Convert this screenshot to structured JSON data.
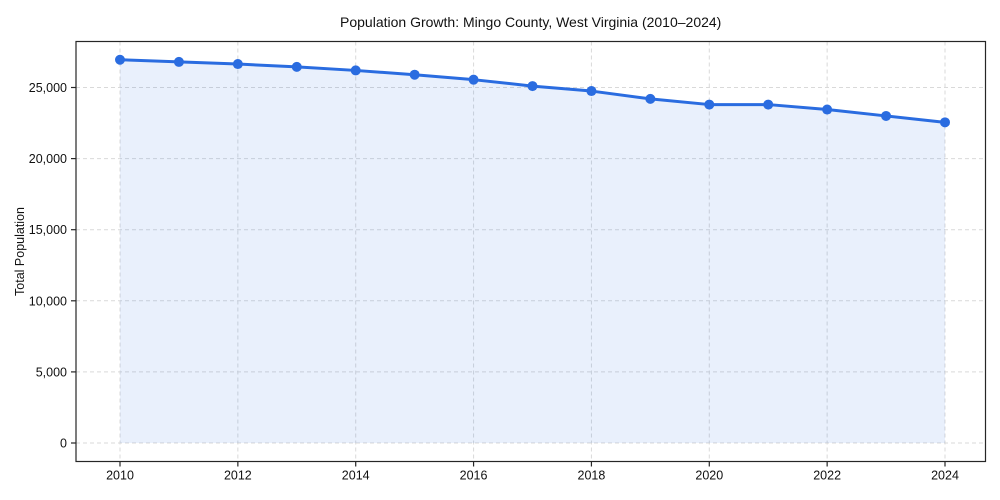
{
  "chart_data": {
    "type": "line",
    "title": "Population Growth: Mingo County, West Virginia (2010–2024)",
    "ylabel": "Total Population",
    "xlabel": "",
    "x": [
      2010,
      2011,
      2012,
      2013,
      2014,
      2015,
      2016,
      2017,
      2018,
      2019,
      2020,
      2021,
      2022,
      2023,
      2024
    ],
    "series": [
      {
        "name": "Total Population",
        "values": [
          26950,
          26800,
          26650,
          26450,
          26200,
          25900,
          25550,
          25100,
          24750,
          24200,
          23800,
          23800,
          23450,
          23000,
          22550
        ]
      }
    ],
    "xticks": [
      2010,
      2012,
      2014,
      2016,
      2018,
      2020,
      2022,
      2024
    ],
    "yticks": [
      {
        "value": 0,
        "label": "0"
      },
      {
        "value": 5000,
        "label": "5,000"
      },
      {
        "value": 10000,
        "label": "10,000"
      },
      {
        "value": 15000,
        "label": "15,000"
      },
      {
        "value": 20000,
        "label": "20,000"
      },
      {
        "value": 25000,
        "label": "25,000"
      }
    ],
    "ylim": [
      0,
      28250
    ],
    "xlim": [
      2009.25,
      2024.7
    ],
    "grid": "dashed",
    "legend": "none",
    "marker": "circle",
    "line_color": "#2a6ce0",
    "marker_color": "#2a6ce0",
    "fill_color": "rgba(42,108,224,0.10)",
    "grid_color": "#d9d9d9",
    "axis_color": "#262626",
    "background_color": "#ffffff"
  }
}
